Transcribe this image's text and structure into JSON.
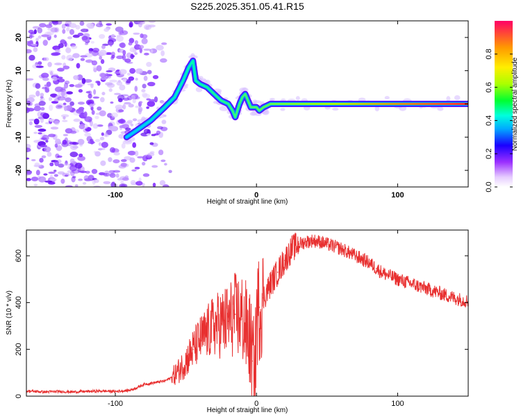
{
  "title": "S225.2025.351.05.41.R15",
  "colorbar": {
    "label": "Normalized spectral amplitude",
    "ticks": [
      0.0,
      0.2,
      0.4,
      0.6,
      0.8
    ],
    "tick_labels": [
      "0.0",
      "0.2",
      "0.4",
      "0.6",
      "0.8"
    ]
  },
  "chart_data": [
    {
      "type": "heatmap",
      "name": "spectrogram",
      "xlabel": "Height of straight line (km)",
      "ylabel": "Frequency (Hz)",
      "xlim": [
        -163,
        150
      ],
      "ylim": [
        -25,
        25
      ],
      "xticks": [
        -100,
        0,
        100
      ],
      "xtick_labels": [
        "-100",
        "0",
        "100"
      ],
      "yticks": [
        -20,
        -10,
        0,
        10,
        20
      ],
      "ytick_labels": [
        "-20",
        "-10",
        "0",
        "10",
        "20"
      ],
      "ridge": {
        "x": [
          -92,
          -85,
          -75,
          -65,
          -58,
          -52,
          -48,
          -45,
          -43,
          -40,
          -35,
          -30,
          -25,
          -20,
          -17,
          -15,
          -12,
          -10,
          -8,
          -6,
          -4,
          -2,
          0,
          2,
          5,
          10,
          20,
          40,
          60,
          85,
          100,
          120,
          150
        ],
        "y": [
          -10,
          -8,
          -5,
          -1,
          2,
          7,
          11,
          13,
          7,
          6,
          5,
          3,
          1,
          0,
          -2,
          -4,
          0,
          2,
          3,
          1,
          -1,
          -1,
          -1,
          -2,
          -1,
          0,
          0,
          0,
          0,
          0,
          0,
          0,
          0
        ]
      }
    },
    {
      "type": "line",
      "name": "snr",
      "xlabel": "Height of straight line (km)",
      "ylabel": "SNR (10 * v/v)",
      "xlim": [
        -163,
        150
      ],
      "ylim": [
        0,
        710
      ],
      "xticks": [
        -100,
        0,
        100
      ],
      "xtick_labels": [
        "-100",
        "0",
        "100"
      ],
      "yticks": [
        0,
        200,
        400,
        600
      ],
      "ytick_labels": [
        "0",
        "200",
        "400",
        "600"
      ],
      "series": [
        {
          "name": "SNR",
          "color": "#e83030",
          "x": [
            -163,
            -150,
            -140,
            -130,
            -120,
            -110,
            -100,
            -90,
            -85,
            -80,
            -75,
            -70,
            -65,
            -60,
            -55,
            -50,
            -45,
            -40,
            -35,
            -30,
            -25,
            -20,
            -15,
            -10,
            -5,
            -3,
            -1,
            0,
            2,
            5,
            10,
            15,
            20,
            25,
            30,
            35,
            40,
            45,
            50,
            60,
            70,
            80,
            85,
            90,
            100,
            110,
            120,
            130,
            140,
            150
          ],
          "y": [
            22,
            18,
            20,
            18,
            20,
            22,
            20,
            25,
            35,
            50,
            55,
            60,
            65,
            80,
            110,
            150,
            200,
            240,
            270,
            300,
            310,
            320,
            350,
            330,
            250,
            150,
            90,
            340,
            380,
            420,
            480,
            530,
            580,
            630,
            650,
            660,
            665,
            660,
            650,
            630,
            600,
            570,
            545,
            525,
            500,
            480,
            460,
            440,
            420,
            405
          ]
        }
      ]
    }
  ]
}
